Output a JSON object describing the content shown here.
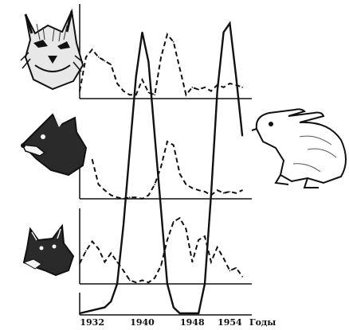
{
  "chart_data": {
    "type": "line",
    "title": "",
    "x_ticks": [
      {
        "value": 1932,
        "label": "1932"
      },
      {
        "value": 1940,
        "label": "1940"
      },
      {
        "value": 1948,
        "label": "1948"
      },
      {
        "value": 1954,
        "label": "1954"
      }
    ],
    "x_axis_unit": "Годы",
    "xlim": [
      1930,
      1957
    ],
    "panels": [
      {
        "id": "lynx",
        "icon": "lynx-icon",
        "style": "dashed",
        "x": [
          1930,
          1931,
          1932,
          1933,
          1934,
          1935,
          1936,
          1937,
          1938,
          1939,
          1940,
          1941,
          1942,
          1943,
          1944,
          1945,
          1946,
          1947,
          1948,
          1949,
          1950,
          1951,
          1952,
          1953,
          1954,
          1955,
          1956
        ],
        "values": [
          0.1,
          0.55,
          0.65,
          0.55,
          0.5,
          0.45,
          0.2,
          0.1,
          0.05,
          0.05,
          0.25,
          0.08,
          0.05,
          0.55,
          0.85,
          0.75,
          0.4,
          0.05,
          0.15,
          0.12,
          0.15,
          0.1,
          0.18,
          0.15,
          0.2,
          0.18,
          0.15
        ]
      },
      {
        "id": "fox",
        "icon": "fox-icon",
        "style": "dashed",
        "x": [
          1932,
          1933,
          1934,
          1935,
          1936,
          1937,
          1938,
          1939,
          1940,
          1941,
          1942,
          1943,
          1944,
          1945,
          1946,
          1947,
          1948,
          1949,
          1950,
          1951,
          1952,
          1953,
          1954,
          1955,
          1956
        ],
        "values": [
          0.55,
          0.2,
          0.12,
          0.05,
          0.02,
          0.0,
          0.02,
          0.02,
          0.0,
          0.05,
          0.2,
          0.45,
          0.8,
          0.75,
          0.35,
          0.2,
          0.15,
          0.12,
          0.1,
          0.05,
          0.12,
          0.08,
          0.1,
          0.08,
          0.12
        ]
      },
      {
        "id": "wolf",
        "icon": "wolf-icon",
        "style": "dashed",
        "x": [
          1930,
          1931,
          1932,
          1933,
          1934,
          1935,
          1936,
          1937,
          1938,
          1939,
          1940,
          1941,
          1942,
          1943,
          1944,
          1945,
          1946,
          1947,
          1948,
          1949,
          1950,
          1951,
          1952,
          1953,
          1954,
          1955,
          1956
        ],
        "values": [
          0.28,
          0.45,
          0.58,
          0.48,
          0.3,
          0.42,
          0.3,
          0.18,
          0.05,
          0.02,
          0.05,
          0.02,
          0.08,
          0.25,
          0.6,
          0.85,
          0.9,
          0.75,
          0.3,
          0.6,
          0.65,
          0.3,
          0.5,
          0.35,
          0.18,
          0.22,
          0.1
        ]
      }
    ],
    "overlay_series": {
      "id": "hare",
      "icon": "hare-icon",
      "style": "solid",
      "x": [
        1930,
        1932,
        1934,
        1935,
        1936,
        1937,
        1938,
        1939,
        1940,
        1941,
        1942,
        1943,
        1944,
        1945,
        1946,
        1947,
        1948,
        1949,
        1950,
        1951,
        1952,
        1953,
        1954,
        1955,
        1956
      ],
      "values": [
        0.0,
        0.01,
        0.02,
        0.04,
        0.1,
        0.3,
        0.55,
        0.8,
        0.95,
        0.85,
        0.6,
        0.35,
        0.1,
        0.02,
        0.0,
        0.0,
        0.0,
        0.0,
        0.1,
        0.4,
        0.75,
        0.95,
        0.98,
        0.8,
        0.6
      ]
    }
  }
}
